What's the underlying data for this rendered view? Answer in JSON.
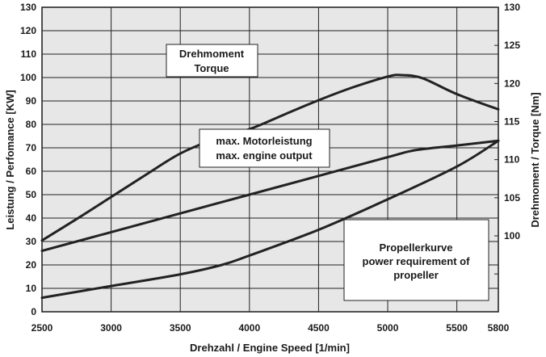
{
  "chart_data": {
    "type": "line",
    "xlabel": "Drehzahl / Engine Speed [1/min]",
    "ylabel_left": "Leistung / Perfomance [KW]",
    "ylabel_right": "Drehmoment / Torque [Nm]",
    "xlim": [
      2500,
      5800
    ],
    "ylim_left": [
      0,
      130
    ],
    "ylim_right_ticks_range": [
      100,
      130
    ],
    "x_ticks": [
      "2500",
      "3000",
      "3500",
      "4000",
      "4500",
      "5000",
      "5500",
      "5800"
    ],
    "y_left_ticks": [
      "0",
      "10",
      "20",
      "30",
      "40",
      "50",
      "60",
      "70",
      "80",
      "90",
      "100",
      "110",
      "120",
      "130"
    ],
    "y_right_ticks": [
      "100",
      "105",
      "110",
      "115",
      "120",
      "125",
      "130"
    ],
    "grid": true,
    "series": [
      {
        "name": "Drehmoment Torque",
        "axis": "right",
        "x": [
          2500,
          2750,
          3000,
          3250,
          3500,
          3750,
          4000,
          4250,
          4500,
          4750,
          5000,
          5100,
          5250,
          5500,
          5800
        ],
        "y": [
          99.4,
          102.2,
          105.1,
          108.0,
          110.8,
          112.7,
          114.0,
          115.9,
          117.8,
          119.5,
          120.9,
          121.1,
          120.7,
          118.6,
          116.6
        ]
      },
      {
        "name": "max. Motorleistung max. engine output",
        "axis": "left",
        "x": [
          2500,
          3000,
          3500,
          4000,
          4500,
          5000,
          5200,
          5500,
          5800
        ],
        "y": [
          26,
          34,
          42,
          50,
          58,
          66,
          69,
          71,
          73
        ]
      },
      {
        "name": "Propellerkurve power requirement of propeller",
        "axis": "left",
        "x": [
          2500,
          3000,
          3500,
          3800,
          4000,
          4500,
          5000,
          5500,
          5800
        ],
        "y": [
          6,
          11,
          16,
          20,
          24,
          35,
          48,
          62,
          73
        ]
      }
    ],
    "annotations": [
      {
        "lines": [
          "Drehmoment",
          "Torque"
        ]
      },
      {
        "lines": [
          "max. Motorleistung",
          "max. engine output"
        ]
      },
      {
        "lines": [
          "Propellerkurve",
          "power requirement of",
          "propeller"
        ]
      }
    ]
  }
}
